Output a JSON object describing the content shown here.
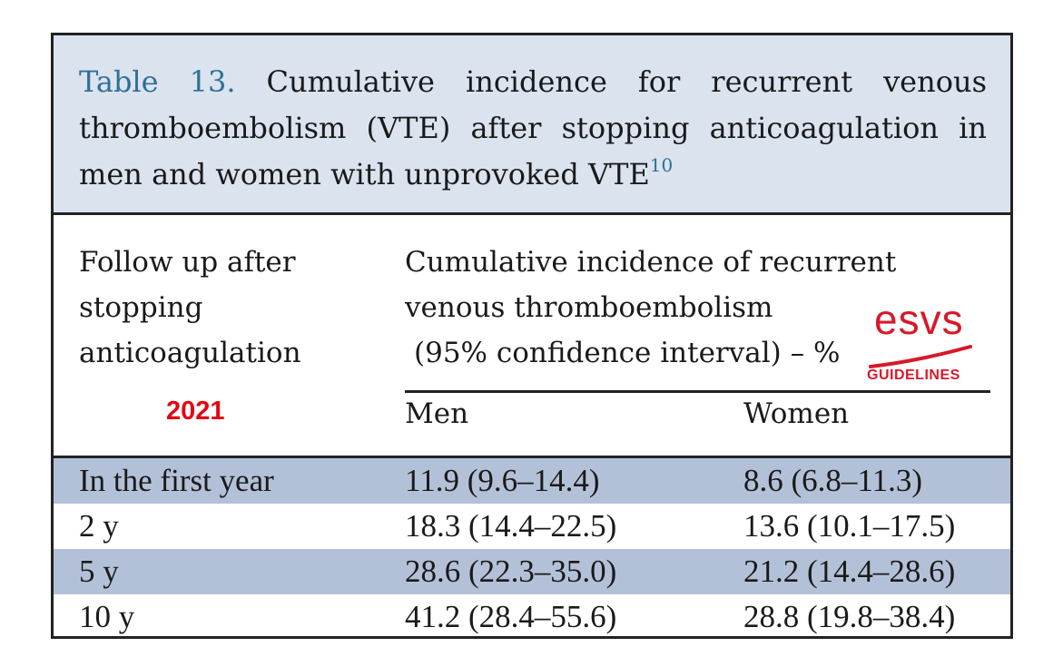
{
  "caption": {
    "label": "Table 13.",
    "text": "Cumulative incidence for recurrent venous thromboembolism (VTE) after stopping anticoagulation in men and women with unprovoked VTE",
    "ref": "10"
  },
  "header": {
    "col1": [
      "Follow up after",
      "stopping",
      "anticoagulation"
    ],
    "col2": [
      "Cumulative incidence of recurrent",
      "venous thromboembolism",
      "(95% confidence interval) – %"
    ],
    "year": "2021",
    "men": "Men",
    "women": "Women"
  },
  "logo": {
    "text": "esvs",
    "sub": "GUIDELINES"
  },
  "rows": [
    {
      "period": "In the first year",
      "men": "11.9 (9.6–14.4)",
      "women": "8.6 (6.8–11.3)"
    },
    {
      "period": "2 y",
      "men": "18.3 (14.4–22.5)",
      "women": "13.6 (10.1–17.5)"
    },
    {
      "period": "5 y",
      "men": "28.6 (22.3–35.0)",
      "women": "21.2 (14.4–28.6)"
    },
    {
      "period": "10 y",
      "men": "41.2 (28.4–55.6)",
      "women": "28.8 (19.8–38.4)"
    }
  ],
  "colors": {
    "caption_bg": "#dbe3ef",
    "shaded_row": "#b3c1d8",
    "label_blue": "#2e6f97",
    "accent_red": "#e30613"
  }
}
